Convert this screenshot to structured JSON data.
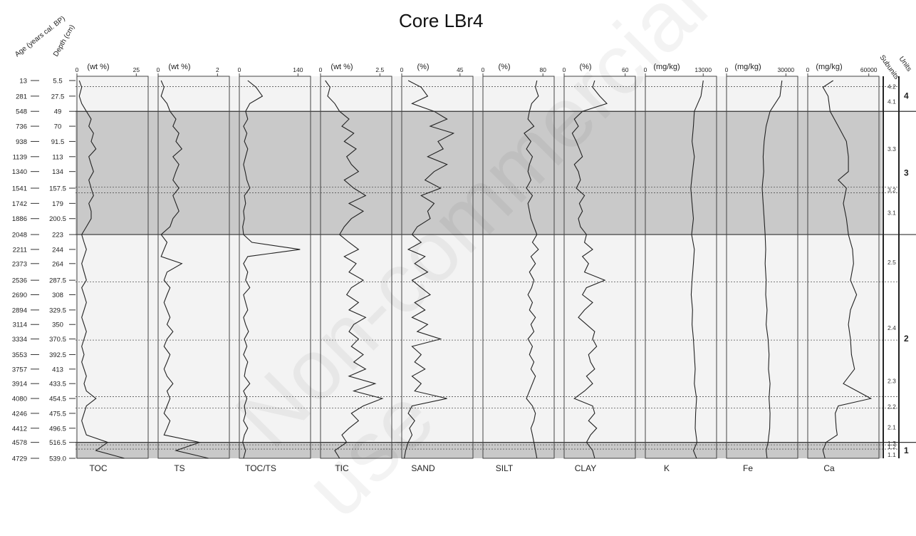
{
  "title": "Core LBr4",
  "watermark": "Non-commercial use",
  "colors": {
    "shade": "#c9c9c9",
    "light": "#f3f3f3",
    "line": "#222222"
  },
  "axis_headers": {
    "age": "Age (years cal. BP)",
    "depth": "Depth (cm)",
    "subunits": "Subunits",
    "units": "Units"
  },
  "age_ticks": [
    "13",
    "281",
    "548",
    "736",
    "938",
    "1139",
    "1340",
    "1541",
    "1742",
    "1886",
    "2048",
    "2211",
    "2373",
    "2536",
    "2690",
    "2894",
    "3114",
    "3334",
    "3553",
    "3757",
    "3914",
    "4080",
    "4246",
    "4412",
    "4578",
    "4729"
  ],
  "depth_ticks": [
    "5.5",
    "27.5",
    "49",
    "70",
    "91.5",
    "113",
    "134",
    "157.5",
    "179",
    "200.5",
    "223",
    "244",
    "264",
    "287.5",
    "308",
    "329.5",
    "350",
    "370.5",
    "392.5",
    "413",
    "433.5",
    "454.5",
    "475.5",
    "496.5",
    "516.5",
    "539.0"
  ],
  "units": [
    {
      "label": "4",
      "from": 5.5,
      "to": 49
    },
    {
      "label": "3",
      "from": 49,
      "to": 223
    },
    {
      "label": "2",
      "from": 223,
      "to": 516.5
    },
    {
      "label": "1",
      "from": 516.5,
      "to": 539
    }
  ],
  "subunits": [
    {
      "label": "4.2",
      "depth": 14
    },
    {
      "label": "4.1",
      "depth": 35
    },
    {
      "label": "3.3",
      "depth": 102
    },
    {
      "label": "3.2",
      "depth": 160
    },
    {
      "label": "3.1",
      "depth": 192
    },
    {
      "label": "2.5",
      "depth": 262
    },
    {
      "label": "2.4",
      "depth": 355
    },
    {
      "label": "2.3",
      "depth": 430
    },
    {
      "label": "2.2",
      "depth": 466
    },
    {
      "label": "2.1",
      "depth": 495
    },
    {
      "label": "1.3",
      "depth": 518
    },
    {
      "label": "1.2",
      "depth": 523
    },
    {
      "label": "1.1",
      "depth": 534
    }
  ],
  "subunit_boundaries": [
    14,
    156,
    164,
    290,
    372,
    452,
    468,
    520,
    526
  ],
  "shaded_intervals": [
    [
      49,
      223
    ],
    [
      516.5,
      539
    ]
  ],
  "chart_data": [
    {
      "type": "line",
      "name": "TOC",
      "unit": "(wt %)",
      "ticks": [
        "0",
        "25"
      ],
      "xlim": [
        0,
        30
      ],
      "depth": [
        5.5,
        15,
        27.5,
        38,
        49,
        60,
        70,
        80,
        91.5,
        102,
        113,
        124,
        134,
        146,
        157.5,
        168,
        179,
        190,
        200.5,
        212,
        223,
        234,
        244,
        254,
        264,
        276,
        287.5,
        298,
        308,
        319,
        329.5,
        340,
        350,
        360,
        370.5,
        381,
        392.5,
        403,
        413,
        423,
        433.5,
        444,
        454.5,
        465,
        475.5,
        486,
        496.5,
        506,
        516.5,
        528,
        539
      ],
      "values": [
        1,
        2,
        1,
        2,
        4,
        6,
        5,
        7,
        6,
        8,
        5,
        6,
        7,
        5,
        6,
        7,
        5,
        6,
        6,
        4,
        2,
        3,
        4,
        3,
        2,
        3,
        4,
        2,
        3,
        4,
        3,
        2,
        3,
        4,
        3,
        2,
        3,
        2,
        3,
        4,
        3,
        4,
        8,
        4,
        3,
        2,
        3,
        4,
        13,
        8,
        20
      ]
    },
    {
      "type": "line",
      "name": "TS",
      "unit": "(wt %)",
      "ticks": [
        "0",
        "2"
      ],
      "xlim": [
        0,
        2.4
      ],
      "depth": [
        5.5,
        15,
        27.5,
        38,
        49,
        60,
        70,
        80,
        91.5,
        102,
        113,
        124,
        134,
        146,
        157.5,
        168,
        179,
        190,
        200.5,
        212,
        223,
        234,
        244,
        254,
        264,
        276,
        287.5,
        298,
        308,
        319,
        329.5,
        340,
        350,
        360,
        370.5,
        381,
        392.5,
        403,
        413,
        423,
        433.5,
        444,
        454.5,
        465,
        475.5,
        486,
        496.5,
        506,
        516.5,
        528,
        539
      ],
      "values": [
        0.1,
        0.2,
        0.1,
        0.3,
        0.4,
        0.6,
        0.5,
        0.7,
        0.6,
        0.8,
        0.5,
        0.7,
        0.6,
        0.5,
        0.7,
        0.5,
        0.6,
        0.7,
        0.5,
        0.4,
        0.1,
        0.3,
        0.2,
        0.1,
        0.8,
        0.3,
        0.2,
        0.4,
        0.3,
        0.2,
        0.3,
        0.4,
        0.3,
        0.5,
        0.3,
        0.2,
        0.4,
        0.3,
        0.2,
        0.3,
        0.5,
        0.3,
        0.4,
        0.3,
        0.2,
        0.4,
        0.3,
        0.2,
        1.4,
        0.6,
        1.7
      ]
    },
    {
      "type": "line",
      "name": "TOC/TS",
      "unit": "",
      "ticks": [
        "0",
        "140"
      ],
      "xlim": [
        0,
        170
      ],
      "depth": [
        5.5,
        15,
        27.5,
        38,
        49,
        60,
        70,
        80,
        91.5,
        102,
        113,
        124,
        134,
        146,
        157.5,
        168,
        179,
        190,
        200.5,
        212,
        223,
        234,
        244,
        254,
        264,
        276,
        287.5,
        298,
        308,
        319,
        329.5,
        340,
        350,
        360,
        370.5,
        381,
        392.5,
        403,
        413,
        423,
        433.5,
        444,
        454.5,
        465,
        475.5,
        486,
        496.5,
        506,
        516.5,
        528,
        539
      ],
      "values": [
        20,
        40,
        55,
        25,
        15,
        20,
        10,
        18,
        12,
        20,
        15,
        10,
        14,
        18,
        25,
        12,
        15,
        10,
        12,
        8,
        10,
        30,
        145,
        20,
        10,
        20,
        15,
        25,
        10,
        15,
        20,
        10,
        15,
        22,
        12,
        18,
        10,
        20,
        15,
        12,
        25,
        10,
        18,
        12,
        15,
        10,
        20,
        12,
        8,
        15,
        10
      ]
    },
    {
      "type": "line",
      "name": "TIC",
      "unit": "(wt %)",
      "ticks": [
        "0",
        "2.5"
      ],
      "xlim": [
        0,
        3
      ],
      "depth": [
        5.5,
        15,
        27.5,
        38,
        49,
        60,
        70,
        80,
        91.5,
        102,
        113,
        124,
        134,
        146,
        157.5,
        168,
        179,
        190,
        200.5,
        212,
        223,
        234,
        244,
        254,
        264,
        276,
        287.5,
        298,
        308,
        319,
        329.5,
        340,
        350,
        360,
        370.5,
        381,
        392.5,
        403,
        413,
        423,
        433.5,
        444,
        454.5,
        465,
        475.5,
        486,
        496.5,
        506,
        516.5,
        528,
        539
      ],
      "values": [
        0.2,
        0.4,
        0.3,
        0.6,
        0.8,
        1.2,
        0.9,
        1.4,
        1.0,
        1.5,
        1.1,
        1.3,
        1.6,
        1.0,
        1.4,
        1.9,
        1.2,
        1.8,
        1.3,
        1.0,
        0.8,
        1.2,
        1.6,
        1.0,
        1.5,
        1.2,
        1.8,
        1.3,
        1.1,
        1.6,
        1.2,
        1.9,
        1.4,
        1.2,
        1.6,
        1.3,
        1.8,
        1.4,
        1.9,
        1.2,
        2.3,
        1.4,
        2.6,
        1.8,
        1.3,
        1.6,
        1.2,
        0.9,
        1.1,
        0.6,
        0.8
      ]
    },
    {
      "type": "line",
      "name": "SAND",
      "unit": "(%)",
      "ticks": [
        "0",
        "45"
      ],
      "xlim": [
        0,
        55
      ],
      "depth": [
        5.5,
        15,
        27.5,
        38,
        49,
        60,
        70,
        80,
        91.5,
        102,
        113,
        124,
        134,
        146,
        157.5,
        168,
        179,
        190,
        200.5,
        212,
        223,
        234,
        244,
        254,
        264,
        276,
        287.5,
        298,
        308,
        319,
        329.5,
        340,
        350,
        360,
        370.5,
        381,
        392.5,
        403,
        413,
        423,
        433.5,
        444,
        454.5,
        465,
        475.5,
        486,
        496.5,
        506,
        516.5,
        528,
        539
      ],
      "values": [
        5,
        15,
        20,
        8,
        25,
        35,
        22,
        40,
        28,
        32,
        20,
        35,
        25,
        18,
        30,
        15,
        25,
        20,
        22,
        12,
        8,
        15,
        5,
        18,
        10,
        20,
        8,
        15,
        22,
        10,
        18,
        8,
        20,
        12,
        30,
        8,
        15,
        10,
        18,
        8,
        15,
        10,
        35,
        8,
        5,
        10,
        6,
        8,
        5,
        3,
        2
      ]
    },
    {
      "type": "line",
      "name": "SILT",
      "unit": "(%)",
      "ticks": [
        "0",
        "80"
      ],
      "xlim": [
        0,
        95
      ],
      "depth": [
        5.5,
        15,
        27.5,
        38,
        49,
        60,
        70,
        80,
        91.5,
        102,
        113,
        124,
        134,
        146,
        157.5,
        168,
        179,
        190,
        200.5,
        212,
        223,
        234,
        244,
        254,
        264,
        276,
        287.5,
        298,
        308,
        319,
        329.5,
        340,
        350,
        360,
        370.5,
        381,
        392.5,
        403,
        413,
        423,
        433.5,
        444,
        454.5,
        465,
        475.5,
        486,
        496.5,
        506,
        516.5,
        528,
        539
      ],
      "values": [
        72,
        70,
        74,
        65,
        62,
        60,
        68,
        55,
        64,
        58,
        66,
        62,
        60,
        64,
        58,
        66,
        60,
        62,
        64,
        68,
        72,
        66,
        74,
        64,
        70,
        62,
        68,
        65,
        60,
        66,
        62,
        70,
        64,
        68,
        60,
        66,
        62,
        68,
        64,
        70,
        66,
        62,
        58,
        66,
        70,
        68,
        64,
        66,
        68,
        70,
        72
      ]
    },
    {
      "type": "line",
      "name": "CLAY",
      "unit": "(%)",
      "ticks": [
        "0",
        "60"
      ],
      "xlim": [
        0,
        70
      ],
      "depth": [
        5.5,
        15,
        27.5,
        38,
        49,
        60,
        70,
        80,
        91.5,
        102,
        113,
        124,
        134,
        146,
        157.5,
        168,
        179,
        190,
        200.5,
        212,
        223,
        234,
        244,
        254,
        264,
        276,
        287.5,
        298,
        308,
        319,
        329.5,
        340,
        350,
        360,
        370.5,
        381,
        392.5,
        403,
        413,
        423,
        433.5,
        444,
        454.5,
        465,
        475.5,
        486,
        496.5,
        506,
        516.5,
        528,
        539
      ],
      "values": [
        30,
        28,
        35,
        42,
        18,
        10,
        14,
        8,
        12,
        15,
        18,
        10,
        14,
        16,
        12,
        20,
        15,
        18,
        14,
        16,
        22,
        20,
        28,
        18,
        24,
        20,
        40,
        22,
        18,
        28,
        20,
        14,
        22,
        30,
        28,
        32,
        24,
        26,
        30,
        22,
        28,
        20,
        10,
        28,
        30,
        24,
        32,
        26,
        22,
        28,
        30
      ]
    },
    {
      "type": "line",
      "name": "K",
      "unit": "(mg/kg)",
      "ticks": [
        "0",
        "13000"
      ],
      "xlim": [
        0,
        16000
      ],
      "depth": [
        5.5,
        27.5,
        49,
        70,
        91.5,
        113,
        134,
        157.5,
        179,
        200.5,
        223,
        244,
        264,
        287.5,
        308,
        329.5,
        350,
        370.5,
        392.5,
        413,
        433.5,
        454.5,
        475.5,
        496.5,
        516.5,
        528,
        539
      ],
      "values": [
        13000,
        12500,
        11000,
        10800,
        10500,
        11000,
        10600,
        10200,
        10500,
        10800,
        10400,
        11000,
        10800,
        10500,
        10300,
        10600,
        10500,
        10800,
        11000,
        11200,
        11000,
        11500,
        11300,
        11200,
        11600,
        10800,
        11500
      ]
    },
    {
      "type": "line",
      "name": "Fe",
      "unit": "(mg/kg)",
      "ticks": [
        "0",
        "30000"
      ],
      "xlim": [
        0,
        36000
      ],
      "depth": [
        5.5,
        27.5,
        49,
        70,
        91.5,
        113,
        134,
        157.5,
        179,
        200.5,
        223,
        244,
        264,
        287.5,
        308,
        329.5,
        350,
        370.5,
        392.5,
        413,
        433.5,
        454.5,
        475.5,
        496.5,
        516.5,
        528,
        539
      ],
      "values": [
        28000,
        27000,
        22000,
        20000,
        19000,
        18500,
        18800,
        18000,
        18500,
        19000,
        19500,
        19800,
        19500,
        20000,
        19800,
        20500,
        20000,
        21000,
        21500,
        21200,
        22000,
        21500,
        22000,
        21800,
        21000,
        20000,
        20500
      ]
    },
    {
      "type": "line",
      "name": "Ca",
      "unit": "(mg/kg)",
      "ticks": [
        "0",
        "60000"
      ],
      "xlim": [
        0,
        70000
      ],
      "depth": [
        5.5,
        15,
        27.5,
        49,
        70,
        91.5,
        113,
        134,
        146,
        157.5,
        179,
        200.5,
        223,
        244,
        264,
        287.5,
        308,
        329.5,
        350,
        370.5,
        392.5,
        413,
        433.5,
        454.5,
        465,
        475.5,
        496.5,
        506,
        516.5,
        528,
        539
      ],
      "values": [
        25000,
        15000,
        20000,
        22000,
        30000,
        38000,
        40000,
        40000,
        30000,
        38000,
        35000,
        38000,
        40000,
        44000,
        45000,
        42000,
        48000,
        42000,
        40000,
        42000,
        43000,
        46000,
        35000,
        62000,
        30000,
        27000,
        28000,
        29000,
        18000,
        15000,
        17000
      ]
    }
  ]
}
